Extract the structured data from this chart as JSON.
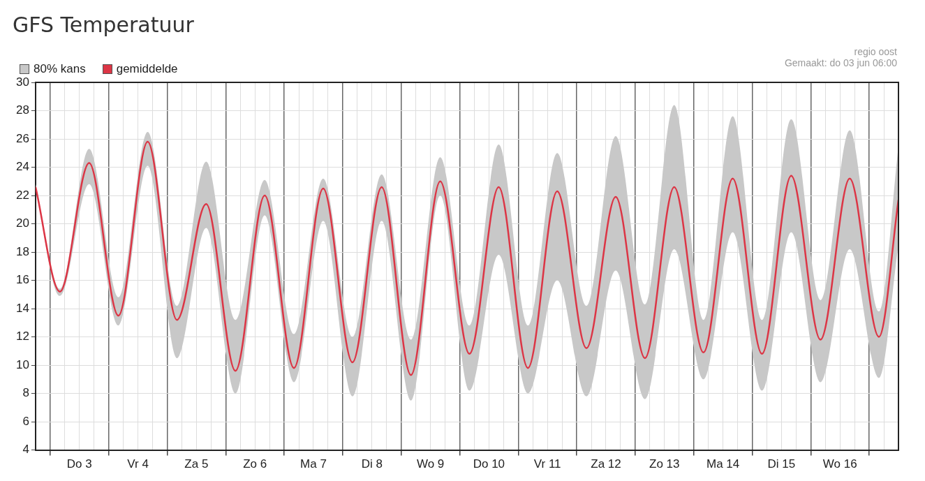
{
  "chart_data": {
    "type": "line",
    "title": "GFS Temperatuur",
    "annotations": [
      "80% kans",
      "regio oost",
      "Gemaakt: do 03 jun 06:00"
    ],
    "x": [
      "--06-02T18:00",
      "--06-03T04:00",
      "--06-03T16:00",
      "--06-04T04:00",
      "--06-04T16:00",
      "--06-05T04:00",
      "--06-05T16:00",
      "--06-06T04:00",
      "--06-06T16:00",
      "--06-07T04:00",
      "--06-07T16:00",
      "--06-08T04:00",
      "--06-08T16:00",
      "--06-09T04:00",
      "--06-09T16:00",
      "--06-10T04:00",
      "--06-10T16:00",
      "--06-11T04:00",
      "--06-11T16:00",
      "--06-12T04:00",
      "--06-12T16:00",
      "--06-13T04:00",
      "--06-13T16:00",
      "--06-14T04:00",
      "--06-14T16:00",
      "--06-15T04:00",
      "--06-15T16:00",
      "--06-16T04:00",
      "--06-16T16:00",
      "--06-17T04:00",
      "--06-17T12:00"
    ],
    "series": [
      {
        "name": "gemiddelde",
        "type": "line",
        "color": "#dc3545",
        "lower": [
          22.5,
          14.9,
          22.8,
          12.8,
          24.1,
          10.5,
          19.7,
          8.0,
          20.6,
          8.8,
          20.2,
          7.8,
          20.2,
          7.5,
          22.0,
          8.2,
          17.8,
          8.0,
          16.0,
          7.8,
          16.7,
          7.6,
          18.2,
          9.0,
          19.4,
          8.2,
          19.4,
          8.8,
          18.2,
          9.1,
          18.5
        ],
        "upper": [
          22.8,
          15.4,
          25.3,
          14.8,
          26.5,
          14.2,
          24.4,
          13.2,
          23.1,
          12.2,
          23.2,
          12.0,
          23.5,
          11.8,
          24.7,
          12.8,
          25.6,
          12.8,
          25.0,
          14.2,
          26.2,
          14.3,
          28.4,
          13.2,
          27.6,
          13.2,
          27.4,
          14.6,
          26.6,
          13.8,
          25.5
        ],
        "values": [
          22.6,
          15.2,
          24.3,
          13.5,
          25.8,
          13.2,
          21.4,
          9.6,
          22.0,
          9.8,
          22.5,
          10.2,
          22.6,
          9.3,
          23.0,
          10.8,
          22.6,
          9.8,
          22.3,
          11.2,
          21.9,
          10.5,
          22.6,
          10.9,
          23.2,
          10.8,
          23.4,
          11.8,
          23.2,
          12.0,
          21.7
        ]
      }
    ],
    "xlim": [
      "--06-02T18:00",
      "--06-17T12:00"
    ],
    "xticks": [
      {
        "value": "--06-02T18:00",
        "label": null
      },
      {
        "value": "--06-03T00:00",
        "label": null
      },
      {
        "value": "--06-03T06:00",
        "label": null
      },
      {
        "value": "--06-03T12:00",
        "label": "Do 3"
      },
      {
        "value": "--06-03T18:00",
        "label": null
      },
      {
        "value": "--06-04T00:00",
        "label": null
      },
      {
        "value": "--06-04T06:00",
        "label": null
      },
      {
        "value": "--06-04T12:00",
        "label": "Vr 4"
      },
      {
        "value": "--06-04T18:00",
        "label": null
      },
      {
        "value": "--06-05T00:00",
        "label": null
      },
      {
        "value": "--06-05T06:00",
        "label": null
      },
      {
        "value": "--06-05T12:00",
        "label": "Za 5"
      },
      {
        "value": "--06-05T18:00",
        "label": null
      },
      {
        "value": "--06-06T00:00",
        "label": null
      },
      {
        "value": "--06-06T06:00",
        "label": null
      },
      {
        "value": "--06-06T12:00",
        "label": "Zo 6"
      },
      {
        "value": "--06-06T18:00",
        "label": null
      },
      {
        "value": "--06-07T00:00",
        "label": null
      },
      {
        "value": "--06-07T06:00",
        "label": null
      },
      {
        "value": "--06-07T12:00",
        "label": "Ma 7"
      },
      {
        "value": "--06-07T18:00",
        "label": null
      },
      {
        "value": "--06-08T00:00",
        "label": null
      },
      {
        "value": "--06-08T06:00",
        "label": null
      },
      {
        "value": "--06-08T12:00",
        "label": "Di 8"
      },
      {
        "value": "--06-08T18:00",
        "label": null
      },
      {
        "value": "--06-09T00:00",
        "label": null
      },
      {
        "value": "--06-09T06:00",
        "label": null
      },
      {
        "value": "--06-09T12:00",
        "label": "Wo 9"
      },
      {
        "value": "--06-09T18:00",
        "label": null
      },
      {
        "value": "--06-10T00:00",
        "label": null
      },
      {
        "value": "--06-10T06:00",
        "label": null
      },
      {
        "value": "--06-10T12:00",
        "label": "Do 10"
      },
      {
        "value": "--06-10T18:00",
        "label": null
      },
      {
        "value": "--06-11T00:00",
        "label": null
      },
      {
        "value": "--06-11T06:00",
        "label": null
      },
      {
        "value": "--06-11T12:00",
        "label": "Vr 11"
      },
      {
        "value": "--06-11T18:00",
        "label": null
      },
      {
        "value": "--06-12T00:00",
        "label": null
      },
      {
        "value": "--06-12T06:00",
        "label": null
      },
      {
        "value": "--06-12T12:00",
        "label": "Za 12"
      },
      {
        "value": "--06-12T18:00",
        "label": null
      },
      {
        "value": "--06-13T00:00",
        "label": null
      },
      {
        "value": "--06-13T06:00",
        "label": null
      },
      {
        "value": "--06-13T12:00",
        "label": "Zo 13"
      },
      {
        "value": "--06-13T18:00",
        "label": null
      },
      {
        "value": "--06-14T00:00",
        "label": null
      },
      {
        "value": "--06-14T06:00",
        "label": null
      },
      {
        "value": "--06-14T12:00",
        "label": "Ma 14"
      },
      {
        "value": "--06-14T18:00",
        "label": null
      },
      {
        "value": "--06-15T00:00",
        "label": null
      },
      {
        "value": "--06-15T06:00",
        "label": null
      },
      {
        "value": "--06-15T12:00",
        "label": "Di 15"
      },
      {
        "value": "--06-15T18:00",
        "label": null
      },
      {
        "value": "--06-16T00:00",
        "label": null
      },
      {
        "value": "--06-16T06:00",
        "label": null
      },
      {
        "value": "--06-16T12:00",
        "label": "Wo 16"
      },
      {
        "value": "--06-16T18:00",
        "label": null
      },
      {
        "value": "--06-17T00:00",
        "label": null
      },
      {
        "value": "--06-17T06:00",
        "label": null
      },
      {
        "value": "--06-17T12:00",
        "label": null
      }
    ],
    "ylim": [
      4,
      30
    ],
    "yticks": [
      4,
      6,
      8,
      10,
      12,
      14,
      16,
      18,
      20,
      22,
      24,
      26,
      28,
      30
    ],
    "grid": true,
    "legend": "top left",
    "marker": "none",
    "line_style": "solid"
  }
}
